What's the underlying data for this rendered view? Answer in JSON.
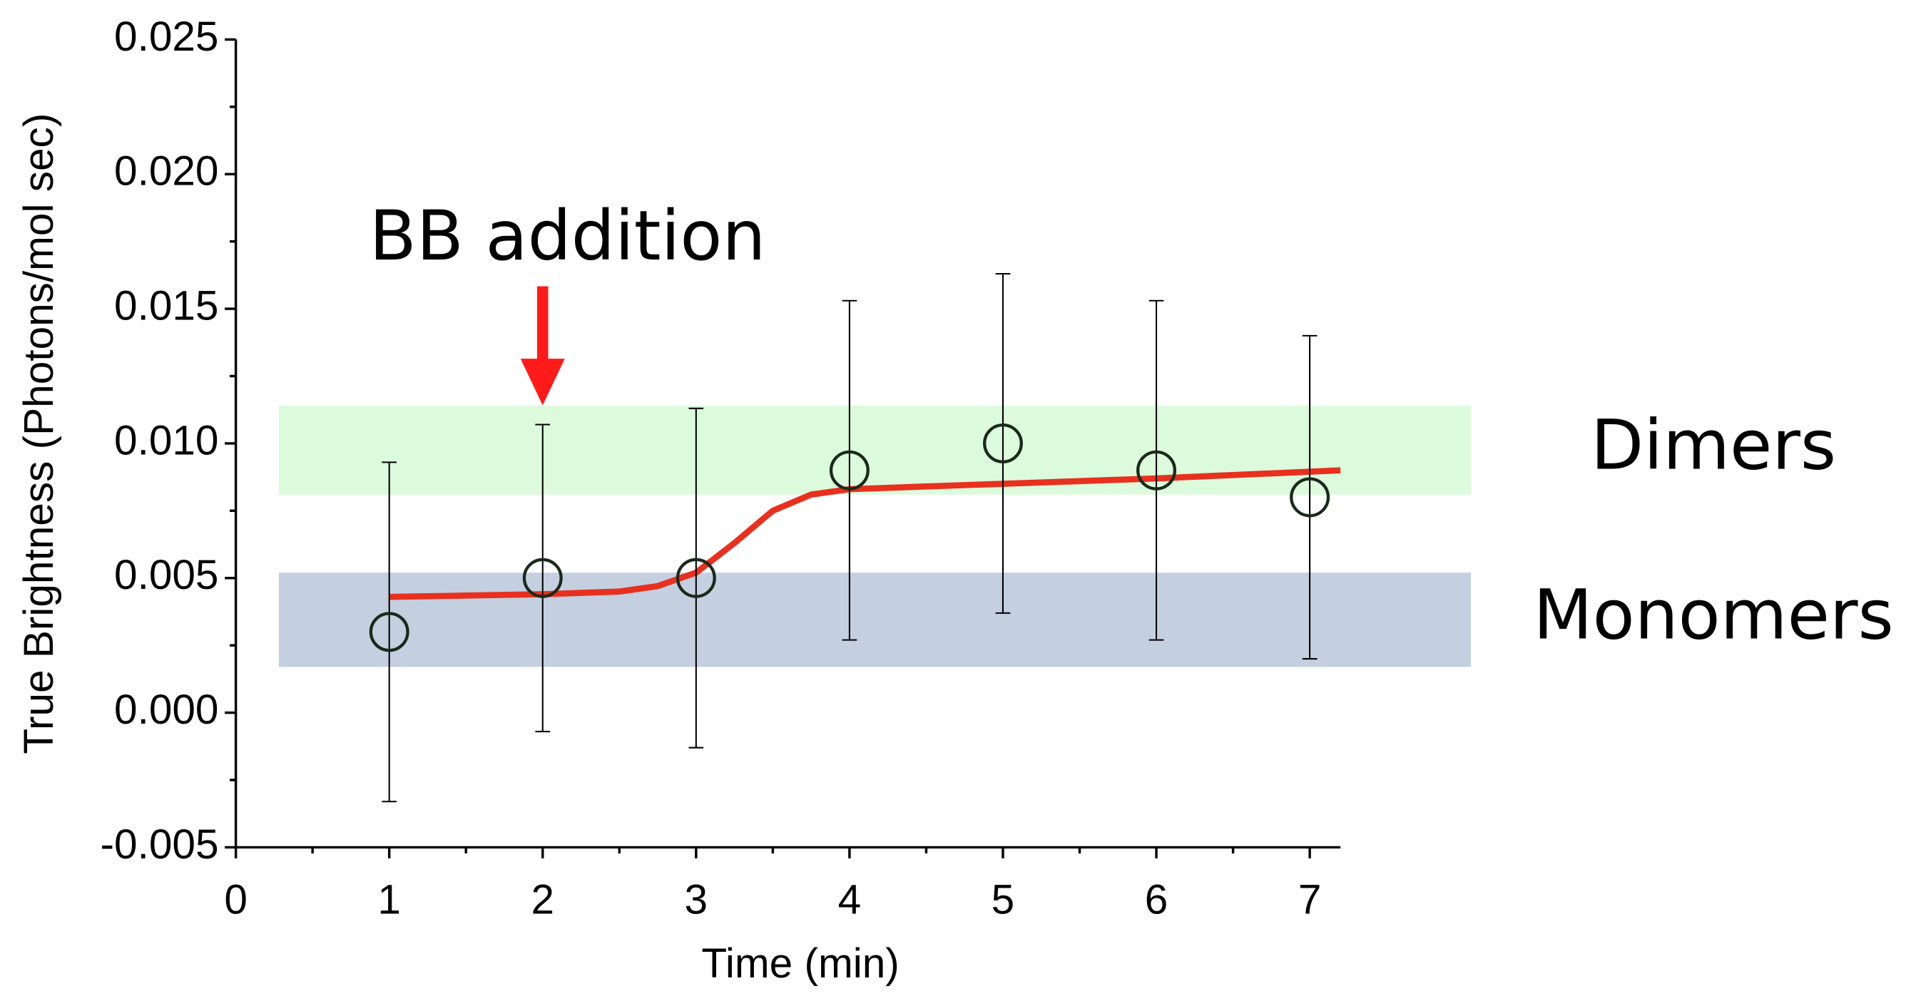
{
  "chart_data": {
    "type": "scatter",
    "xlabel": "Time (min)",
    "ylabel": "True Brightness (Photons/mol sec)",
    "xlim": [
      0,
      7.2
    ],
    "xticks": [
      0,
      1,
      2,
      3,
      4,
      5,
      6,
      7
    ],
    "ylim": [
      -0.005,
      0.025
    ],
    "yticks": [
      -0.005,
      {
        "value": 0,
        "label": "0.000"
      },
      0.005,
      {
        "value": 0.01,
        "label": "0.010"
      },
      0.015,
      {
        "value": 0.02,
        "label": "0.020"
      },
      0.025
    ],
    "series": [
      {
        "color": "#1a2a1a",
        "x": [
          1,
          2,
          3,
          4,
          5,
          6,
          7
        ],
        "values": [
          0.003,
          0.005,
          0.005,
          0.009,
          0.01,
          0.009,
          0.008
        ],
        "errors": [
          0.0063,
          0.0057,
          0.0063,
          0.0063,
          0.0063,
          0.0063,
          0.006
        ]
      },
      {
        "color": "#e8301e",
        "x": [
          1,
          1.5,
          2,
          2.5,
          2.75,
          3,
          3.25,
          3.5,
          3.75,
          4,
          5,
          6,
          7.2
        ],
        "values": [
          0.0043,
          0.00435,
          0.0044,
          0.0045,
          0.0047,
          0.0052,
          0.0063,
          0.0075,
          0.0081,
          0.0083,
          0.0085,
          0.0087,
          0.009
        ]
      }
    ],
    "bands": [
      {
        "label": "Dimers",
        "color": "#dcfadc",
        "x": [
          0.28,
          8.05
        ],
        "y": [
          0.0081,
          0.0114
        ]
      },
      {
        "label": "Monomers",
        "color": "#c4cfe0",
        "x": [
          0.28,
          8.05
        ],
        "y": [
          0.0017,
          0.0052
        ]
      }
    ],
    "annotation": {
      "text": "BB addition",
      "x": 2,
      "color": "#ff1a1a"
    }
  }
}
